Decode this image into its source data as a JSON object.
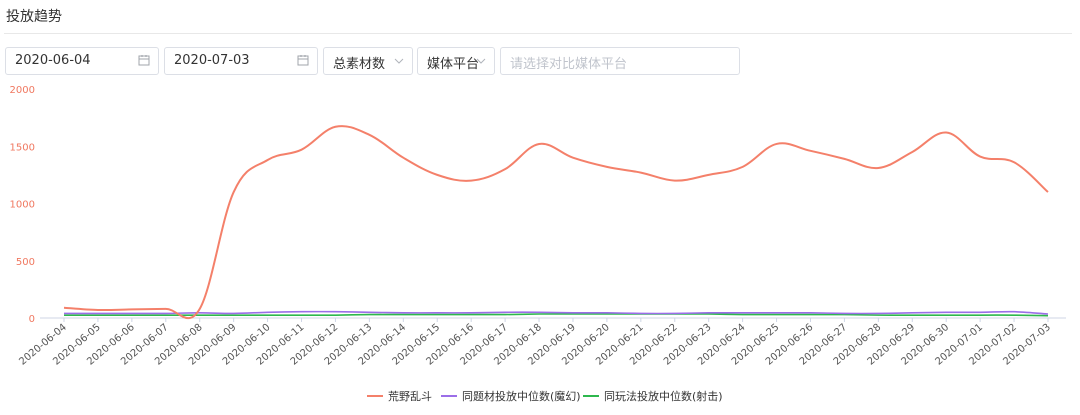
{
  "header": {
    "title": "投放趋势"
  },
  "filters": {
    "date_start": "2020-06-04",
    "date_end": "2020-07-03",
    "material_select": "总素材数",
    "platform_select": "媒体平台",
    "compare_placeholder": "请选择对比媒体平台"
  },
  "icons": {
    "calendar": "calendar-icon",
    "chevron": "chevron-down-icon"
  },
  "chart_data": {
    "type": "line",
    "x": [
      "2020-06-04",
      "2020-06-05",
      "2020-06-06",
      "2020-06-07",
      "2020-06-08",
      "2020-06-09",
      "2020-06-10",
      "2020-06-11",
      "2020-06-12",
      "2020-06-13",
      "2020-06-14",
      "2020-06-15",
      "2020-06-16",
      "2020-06-17",
      "2020-06-18",
      "2020-06-19",
      "2020-06-20",
      "2020-06-21",
      "2020-06-22",
      "2020-06-23",
      "2020-06-24",
      "2020-06-25",
      "2020-06-26",
      "2020-06-27",
      "2020-06-28",
      "2020-06-29",
      "2020-06-30",
      "2020-07-01",
      "2020-07-02",
      "2020-07-03"
    ],
    "ylim": [
      0,
      2000
    ],
    "yticks": [
      "0",
      "500",
      "1000",
      "1500",
      "2000"
    ],
    "grid": false,
    "legend_position": "bottom-center",
    "series": [
      {
        "name": "荒野乱斗",
        "color": "#f4806a",
        "values": [
          90,
          70,
          75,
          80,
          80,
          1100,
          1380,
          1470,
          1670,
          1600,
          1400,
          1250,
          1200,
          1300,
          1520,
          1400,
          1320,
          1270,
          1200,
          1250,
          1320,
          1520,
          1460,
          1390,
          1310,
          1450,
          1620,
          1410,
          1360,
          1100
        ]
      },
      {
        "name": "同题材投放中位数(魔幻)",
        "color": "#9b6ee8",
        "values": [
          40,
          40,
          40,
          40,
          45,
          40,
          50,
          55,
          55,
          50,
          45,
          45,
          45,
          50,
          50,
          45,
          45,
          40,
          40,
          45,
          45,
          45,
          45,
          40,
          40,
          45,
          50,
          50,
          55,
          35
        ]
      },
      {
        "name": "同玩法投放中位数(射击)",
        "color": "#2db84d",
        "values": [
          25,
          25,
          25,
          25,
          25,
          25,
          25,
          25,
          25,
          30,
          30,
          30,
          30,
          30,
          35,
          35,
          35,
          35,
          35,
          35,
          30,
          30,
          30,
          30,
          25,
          25,
          25,
          25,
          25,
          20
        ]
      }
    ]
  }
}
